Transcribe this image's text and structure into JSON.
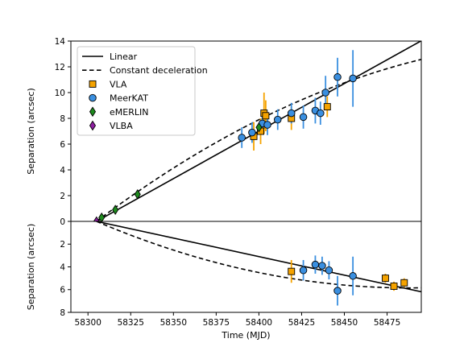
{
  "chart_data": {
    "type": "scatter",
    "xlabel": "Time (MJD)",
    "xlim": [
      58290,
      58495
    ],
    "x_ticks": [
      58300,
      58325,
      58350,
      58375,
      58400,
      58425,
      58450,
      58475
    ],
    "legend_position": "top-left",
    "colors": {
      "VLA": "#f5a300",
      "MeerKAT": "#3a8fe0",
      "eMERLIN": "#1e8b1e",
      "VLBA": "#8e1ea0",
      "errorbar_VLA": "#f5a300",
      "errorbar_MeerKAT": "#3a8fe0"
    },
    "legend": [
      {
        "label": "Linear",
        "kind": "solid-line"
      },
      {
        "label": "Constant deceleration",
        "kind": "dashed-line"
      },
      {
        "label": "VLA",
        "kind": "square"
      },
      {
        "label": "MeerKAT",
        "kind": "circle"
      },
      {
        "label": "eMERLIN",
        "kind": "diamond"
      },
      {
        "label": "VLBA",
        "kind": "diamond"
      }
    ],
    "panels": [
      {
        "ylabel": "Separation (arcsec)",
        "ylim": [
          0,
          14
        ],
        "y_ticks": [
          0,
          2,
          4,
          6,
          8,
          10,
          12,
          14
        ],
        "linear": {
          "x0": 58305,
          "y0": 0,
          "slope": 0.0738
        },
        "decel": {
          "x0": 58305,
          "v0": 0.1,
          "decel": 0.000178
        },
        "series": [
          {
            "name": "VLA",
            "marker": "square",
            "points": [
              {
                "x": 58397,
                "y": 6.6,
                "err": 1.1
              },
              {
                "x": 58401,
                "y": 7.0,
                "err": 1.0
              },
              {
                "x": 58403,
                "y": 8.4,
                "err": 1.6
              },
              {
                "x": 58404,
                "y": 8.2,
                "err": 1.2
              },
              {
                "x": 58419,
                "y": 8.0,
                "err": 0.9
              },
              {
                "x": 58440,
                "y": 8.9,
                "err": 0.8
              }
            ]
          },
          {
            "name": "MeerKAT",
            "marker": "circle",
            "points": [
              {
                "x": 58390,
                "y": 6.5,
                "err": 0.8
              },
              {
                "x": 58396,
                "y": 6.9,
                "err": 0.8
              },
              {
                "x": 58402,
                "y": 7.6,
                "err": 0.8
              },
              {
                "x": 58405,
                "y": 7.5,
                "err": 0.8
              },
              {
                "x": 58411,
                "y": 7.9,
                "err": 0.8
              },
              {
                "x": 58419,
                "y": 8.4,
                "err": 0.8
              },
              {
                "x": 58426,
                "y": 8.1,
                "err": 0.9
              },
              {
                "x": 58433,
                "y": 8.6,
                "err": 1.0
              },
              {
                "x": 58436,
                "y": 8.4,
                "err": 0.9
              },
              {
                "x": 58439,
                "y": 10.0,
                "err": 1.3
              },
              {
                "x": 58446,
                "y": 11.2,
                "err": 1.5
              },
              {
                "x": 58455,
                "y": 11.1,
                "err": 2.2
              }
            ]
          },
          {
            "name": "eMERLIN",
            "marker": "diamond",
            "points": [
              {
                "x": 58308,
                "y": 0.3
              },
              {
                "x": 58316,
                "y": 0.9
              },
              {
                "x": 58329,
                "y": 2.1
              },
              {
                "x": 58400,
                "y": 7.3
              }
            ]
          },
          {
            "name": "VLBA",
            "marker": "diamond",
            "points": [
              {
                "x": 58305,
                "y": 0.0
              }
            ]
          }
        ]
      },
      {
        "ylabel": "Separation (arcsec)",
        "ylim": [
          8,
          0
        ],
        "y_ticks": [
          0,
          2,
          4,
          6,
          8
        ],
        "linear": {
          "x0": 58305,
          "y0": 0,
          "slope": 0.0326
        },
        "decel": {
          "x0": 58305,
          "v0": 0.064,
          "decel": 0.000175
        },
        "series": [
          {
            "name": "VLA",
            "marker": "square",
            "points": [
              {
                "x": 58419,
                "y": 4.4,
                "err": 1.0
              },
              {
                "x": 58474,
                "y": 5.0,
                "err": 0.4
              },
              {
                "x": 58479,
                "y": 5.7,
                "err": 0.4
              },
              {
                "x": 58485,
                "y": 5.4,
                "err": 0.4
              }
            ]
          },
          {
            "name": "MeerKAT",
            "marker": "circle",
            "points": [
              {
                "x": 58426,
                "y": 4.3,
                "err": 0.9
              },
              {
                "x": 58433,
                "y": 3.8,
                "err": 0.8
              },
              {
                "x": 58437,
                "y": 3.9,
                "err": 0.8
              },
              {
                "x": 58441,
                "y": 4.3,
                "err": 0.8
              },
              {
                "x": 58446,
                "y": 6.1,
                "err": 1.3
              },
              {
                "x": 58455,
                "y": 4.8,
                "err": 1.7
              }
            ]
          }
        ]
      }
    ]
  }
}
